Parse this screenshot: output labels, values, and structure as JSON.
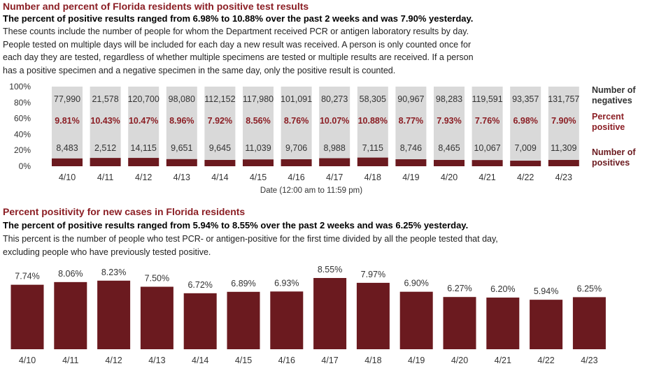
{
  "chart_data": [
    {
      "type": "stacked_bar100",
      "title": "Number and percent of Florida residents with positive test results",
      "subtitle": "The percent of positive results ranged from 6.98% to 10.88% over the past 2 weeks and was 7.90% yesterday.",
      "description": [
        "These counts include the number of people for whom the Department received PCR or antigen laboratory results by day.",
        "People tested on multiple days will be included for each day a new result was received. A person is only counted once for",
        "each day they are tested, regardless of whether multiple specimens are tested or multiple results are received. If a person",
        "has a positive specimen and a negative specimen in the same day, only the positive result is counted."
      ],
      "x_label": "Date (12:00 am to 11:59 pm)",
      "categories": [
        "4/10",
        "4/11",
        "4/12",
        "4/13",
        "4/14",
        "4/15",
        "4/16",
        "4/17",
        "4/18",
        "4/19",
        "4/20",
        "4/21",
        "4/22",
        "4/23"
      ],
      "ylim": [
        0,
        100
      ],
      "yticks": [
        {
          "value": 0,
          "label": "0%"
        },
        {
          "value": 20,
          "label": "20%"
        },
        {
          "value": 40,
          "label": "40%"
        },
        {
          "value": 60,
          "label": "60%"
        },
        {
          "value": 80,
          "label": "80%"
        },
        {
          "value": 100,
          "label": "100%"
        }
      ],
      "series": [
        {
          "name": "Number of negatives",
          "color": "#d9d9d9",
          "values": [
            77990,
            21578,
            120700,
            98080,
            112152,
            117980,
            101091,
            80273,
            58305,
            90967,
            98283,
            119591,
            93357,
            131757
          ],
          "value_labels": [
            "77,990",
            "21,578",
            "120,700",
            "98,080",
            "112,152",
            "117,980",
            "101,091",
            "80,273",
            "58,305",
            "90,967",
            "98,283",
            "119,591",
            "93,357",
            "131,757"
          ]
        },
        {
          "name": "Percent positive",
          "color": "#8b1e24",
          "values": [
            9.81,
            10.43,
            10.47,
            8.96,
            7.92,
            8.56,
            8.76,
            10.07,
            10.88,
            8.77,
            7.93,
            7.76,
            6.98,
            7.9
          ],
          "value_labels": [
            "9.81%",
            "10.43%",
            "10.47%",
            "8.96%",
            "7.92%",
            "8.56%",
            "8.76%",
            "10.07%",
            "10.88%",
            "8.77%",
            "7.93%",
            "7.76%",
            "6.98%",
            "7.90%"
          ]
        },
        {
          "name": "Number of positives",
          "color": "#6b1a1f",
          "values": [
            8483,
            2512,
            14115,
            9651,
            9645,
            11039,
            9706,
            8988,
            7115,
            8746,
            8465,
            10067,
            7009,
            11309
          ],
          "value_labels": [
            "8,483",
            "2,512",
            "14,115",
            "9,651",
            "9,645",
            "11,039",
            "9,706",
            "8,988",
            "7,115",
            "8,746",
            "8,465",
            "10,067",
            "7,009",
            "11,309"
          ]
        }
      ]
    },
    {
      "type": "bar",
      "title": "Percent positivity for new cases in Florida residents",
      "subtitle": "The percent of positive results ranged from 5.94% to 8.55% over the past 2 weeks and was 6.25% yesterday.",
      "description": [
        "This percent is the number of people who test PCR- or antigen-positive for the first time divided by all the people tested that day,",
        "excluding people who have previously tested positive."
      ],
      "categories": [
        "4/10",
        "4/11",
        "4/12",
        "4/13",
        "4/14",
        "4/15",
        "4/16",
        "4/17",
        "4/18",
        "4/19",
        "4/20",
        "4/21",
        "4/22",
        "4/23"
      ],
      "color": "#6b1a1f",
      "values": [
        7.74,
        8.06,
        8.23,
        7.5,
        6.72,
        6.89,
        6.93,
        8.55,
        7.97,
        6.9,
        6.27,
        6.2,
        5.94,
        6.25
      ],
      "value_labels": [
        "7.74%",
        "8.06%",
        "8.23%",
        "7.50%",
        "6.72%",
        "6.89%",
        "6.93%",
        "8.55%",
        "7.97%",
        "6.90%",
        "6.27%",
        "6.20%",
        "5.94%",
        "6.25%"
      ]
    }
  ]
}
